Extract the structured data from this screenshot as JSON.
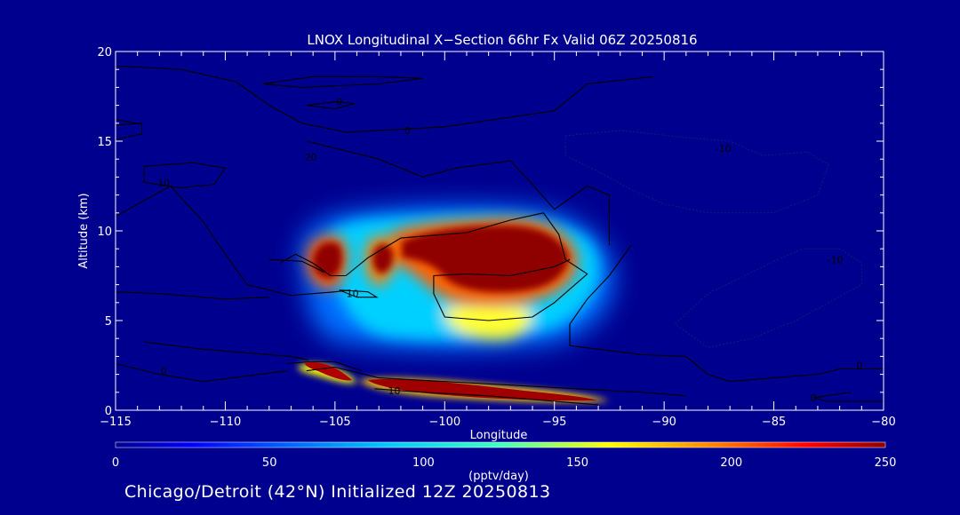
{
  "chart_data": {
    "type": "heatmap",
    "title": "LNOX Longitudinal X−Section 66hr  Fx Valid 06Z 20250816",
    "xlabel": "Longitude",
    "ylabel": "Altitude (km)",
    "xlim": [
      -115,
      -80
    ],
    "ylim": [
      0,
      20
    ],
    "x_ticks": [
      -115,
      -110,
      -105,
      -100,
      -95,
      -90,
      -85,
      -80
    ],
    "x_tick_labels": [
      "−115",
      "−110",
      "−105",
      "−100",
      "−95",
      "−90",
      "−85",
      "−80"
    ],
    "y_ticks": [
      0,
      5,
      10,
      15,
      20
    ],
    "y_tick_labels": [
      "0",
      "5",
      "10",
      "15",
      "20"
    ],
    "colorbar": {
      "label": "(pptv/day)",
      "range": [
        0,
        250
      ],
      "ticks": [
        "0",
        "50",
        "100",
        "150",
        "200",
        "250"
      ]
    },
    "contour_labels": [
      {
        "text": "0",
        "lon": -104.8,
        "alt": 17.2
      },
      {
        "text": "0",
        "lon": -101.7,
        "alt": 15.6
      },
      {
        "text": "20",
        "lon": -106.1,
        "alt": 14.1
      },
      {
        "text": "10",
        "lon": -112.8,
        "alt": 12.7
      },
      {
        "text": "10",
        "lon": -104.2,
        "alt": 6.5
      },
      {
        "text": "0",
        "lon": -112.8,
        "alt": 2.2
      },
      {
        "text": "10",
        "lon": -102.3,
        "alt": 1.1
      },
      {
        "text": "-10",
        "lon": -87.3,
        "alt": 14.6
      },
      {
        "text": "-10",
        "lon": -82.2,
        "alt": 8.4
      },
      {
        "text": "0",
        "lon": -81.1,
        "alt": 2.5
      },
      {
        "text": "0",
        "lon": -83.2,
        "alt": 0.7
      }
    ]
  },
  "colors": {
    "background": "#00008f",
    "contour": "#000000",
    "text": "#ffffff"
  },
  "footer": "Chicago/Detroit (42°N) Initialized 12Z 20250813"
}
